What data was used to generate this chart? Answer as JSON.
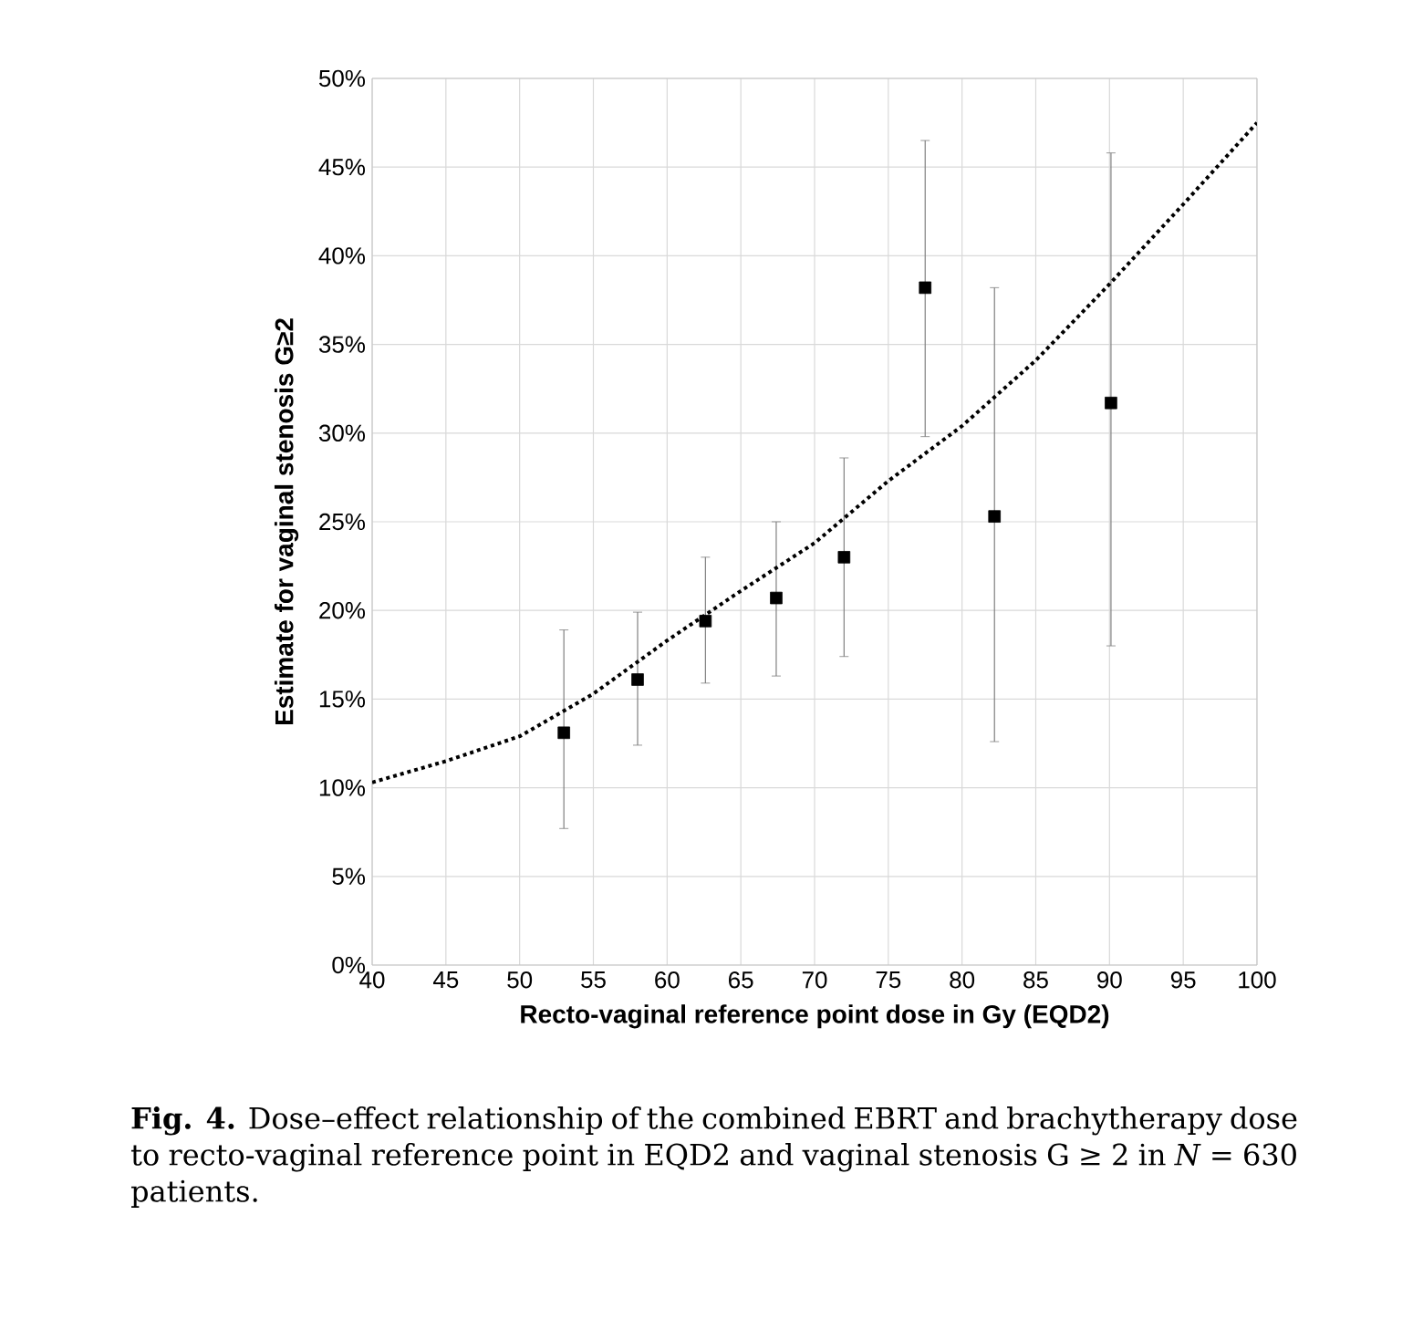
{
  "chart_data": {
    "type": "scatter",
    "xlabel": "Recto-vaginal reference point dose in Gy (EQD2)",
    "ylabel": "Estimate for vaginal stenosis G≥2",
    "annotations": [
      "**Fig. 4.** Dose–effect relationship of the combined EBRT and brachytherapy dose to recto-vaginal reference point in EQD2 and vaginal stenosis G ≥ 2 in *N* = 630 patients."
    ],
    "series": [
      {
        "color": "#000000",
        "marker": "square",
        "x": [
          53,
          58,
          62.6,
          67.4,
          72,
          77.5,
          82.2,
          90.1
        ],
        "values": [
          13.1,
          16.1,
          19.4,
          20.7,
          23.0,
          38.2,
          25.3,
          31.7
        ],
        "errors": [
          [
            7.7,
            18.9
          ],
          [
            12.4,
            19.9
          ],
          [
            15.9,
            23.0
          ],
          [
            16.3,
            25.0
          ],
          [
            17.4,
            28.6
          ],
          [
            29.8,
            46.5
          ],
          [
            12.6,
            38.2
          ],
          [
            18.0,
            45.8
          ]
        ]
      },
      {
        "type": "line",
        "color": "#000000",
        "marker": "none",
        "line_style": "dotted",
        "x": [
          40,
          45,
          50,
          55,
          60,
          65,
          70,
          75,
          80,
          85,
          90,
          95,
          100
        ],
        "values": [
          10.3,
          11.5,
          12.9,
          15.3,
          18.3,
          21.1,
          23.8,
          27.3,
          30.4,
          34.1,
          38.4,
          42.9,
          47.5
        ]
      }
    ],
    "xlim": [
      40,
      100
    ],
    "xticks": [
      40,
      45,
      50,
      55,
      60,
      65,
      70,
      75,
      80,
      85,
      90,
      95,
      100
    ],
    "ylim": [
      0,
      50
    ],
    "yticks": [
      {
        "value": 0,
        "label": "0%"
      },
      {
        "value": 5,
        "label": "5%"
      },
      {
        "value": 10,
        "label": "10%"
      },
      {
        "value": 15,
        "label": "15%"
      },
      {
        "value": 20,
        "label": "20%"
      },
      {
        "value": 25,
        "label": "25%"
      },
      {
        "value": 30,
        "label": "30%"
      },
      {
        "value": 35,
        "label": "35%"
      },
      {
        "value": 40,
        "label": "40%"
      },
      {
        "value": 45,
        "label": "45%"
      },
      {
        "value": 50,
        "label": "50%"
      }
    ],
    "grid": true
  }
}
